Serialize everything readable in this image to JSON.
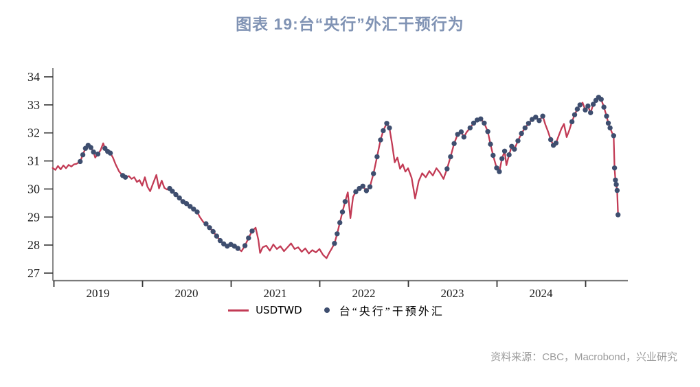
{
  "title": "图表 19:台“央行”外汇干预行为",
  "source": "资料来源：CBC，Macrobond，兴业研究",
  "legend": {
    "line_label": "USDTWD",
    "dot_label": "台“央行”干预外汇"
  },
  "colors": {
    "title": "#8093B4",
    "line": "#C23B55",
    "dot": "#3E4E6F",
    "axis": "#7A7A7A",
    "tick": "#333333",
    "source_text": "#9B9B9B"
  },
  "chart_data": {
    "type": "line",
    "title": "图表 19:台“央行”外汇干预行为",
    "xlabel": "",
    "ylabel": "",
    "x_unit": "decimal_year",
    "grid": false,
    "legend_position": "bottom-center",
    "xlim": [
      2018.99,
      2025.5
    ],
    "ylim": [
      26.6,
      34.35
    ],
    "y_ticks": [
      27,
      28,
      29,
      30,
      31,
      32,
      33,
      34
    ],
    "x_year_ticks": [
      2019,
      2020,
      2021,
      2022,
      2023,
      2024,
      2025
    ],
    "x_year_labels": [
      "2019",
      "2020",
      "2021",
      "2022",
      "2023",
      "2024"
    ],
    "series_line_name": "USDTWD",
    "series_dots_name": "台“央行”干预外汇",
    "points_format": "[decimal_year, usdtwd_rate, intervention_flag]",
    "points": [
      [
        2018.99,
        30.75,
        0
      ],
      [
        2019.02,
        30.68,
        0
      ],
      [
        2019.05,
        30.82,
        0
      ],
      [
        2019.08,
        30.7,
        0
      ],
      [
        2019.11,
        30.84,
        0
      ],
      [
        2019.14,
        30.74,
        0
      ],
      [
        2019.17,
        30.86,
        0
      ],
      [
        2019.2,
        30.8,
        0
      ],
      [
        2019.23,
        30.88,
        0
      ],
      [
        2019.26,
        30.9,
        0
      ],
      [
        2019.3,
        30.98,
        1
      ],
      [
        2019.33,
        31.22,
        1
      ],
      [
        2019.36,
        31.45,
        1
      ],
      [
        2019.39,
        31.56,
        1
      ],
      [
        2019.42,
        31.48,
        1
      ],
      [
        2019.45,
        31.32,
        1
      ],
      [
        2019.47,
        31.12,
        0
      ],
      [
        2019.5,
        31.25,
        1
      ],
      [
        2019.53,
        31.38,
        0
      ],
      [
        2019.56,
        31.63,
        0
      ],
      [
        2019.58,
        31.45,
        1
      ],
      [
        2019.61,
        31.34,
        1
      ],
      [
        2019.64,
        31.28,
        1
      ],
      [
        2019.67,
        31.12,
        0
      ],
      [
        2019.7,
        30.88,
        0
      ],
      [
        2019.74,
        30.62,
        0
      ],
      [
        2019.78,
        30.48,
        1
      ],
      [
        2019.81,
        30.42,
        1
      ],
      [
        2019.85,
        30.46,
        0
      ],
      [
        2019.88,
        30.36,
        0
      ],
      [
        2019.91,
        30.42,
        0
      ],
      [
        2019.94,
        30.25,
        0
      ],
      [
        2019.97,
        30.32,
        0
      ],
      [
        2020.0,
        30.12,
        0
      ],
      [
        2020.03,
        30.42,
        0
      ],
      [
        2020.06,
        30.08,
        0
      ],
      [
        2020.09,
        29.92,
        0
      ],
      [
        2020.12,
        30.18,
        0
      ],
      [
        2020.16,
        30.5,
        0
      ],
      [
        2020.19,
        30.02,
        0
      ],
      [
        2020.22,
        30.3,
        0
      ],
      [
        2020.25,
        30.04,
        0
      ],
      [
        2020.28,
        29.98,
        0
      ],
      [
        2020.31,
        30.02,
        1
      ],
      [
        2020.34,
        29.92,
        1
      ],
      [
        2020.38,
        29.8,
        1
      ],
      [
        2020.42,
        29.68,
        1
      ],
      [
        2020.46,
        29.55,
        1
      ],
      [
        2020.5,
        29.48,
        1
      ],
      [
        2020.54,
        29.38,
        1
      ],
      [
        2020.58,
        29.28,
        1
      ],
      [
        2020.62,
        29.18,
        1
      ],
      [
        2020.65,
        29.0,
        0
      ],
      [
        2020.69,
        28.82,
        0
      ],
      [
        2020.72,
        28.76,
        1
      ],
      [
        2020.76,
        28.62,
        1
      ],
      [
        2020.8,
        28.48,
        1
      ],
      [
        2020.84,
        28.32,
        1
      ],
      [
        2020.88,
        28.16,
        1
      ],
      [
        2020.92,
        28.04,
        1
      ],
      [
        2020.96,
        27.96,
        1
      ],
      [
        2021.0,
        28.02,
        1
      ],
      [
        2021.04,
        27.96,
        1
      ],
      [
        2021.08,
        27.88,
        1
      ],
      [
        2021.12,
        27.78,
        0
      ],
      [
        2021.16,
        27.98,
        1
      ],
      [
        2021.2,
        28.25,
        1
      ],
      [
        2021.24,
        28.5,
        1
      ],
      [
        2021.28,
        28.62,
        0
      ],
      [
        2021.31,
        28.2,
        0
      ],
      [
        2021.33,
        27.72,
        0
      ],
      [
        2021.36,
        27.92,
        0
      ],
      [
        2021.4,
        27.98,
        0
      ],
      [
        2021.44,
        27.8,
        0
      ],
      [
        2021.48,
        28.02,
        0
      ],
      [
        2021.52,
        27.86,
        0
      ],
      [
        2021.56,
        27.96,
        0
      ],
      [
        2021.6,
        27.78,
        0
      ],
      [
        2021.64,
        27.92,
        0
      ],
      [
        2021.68,
        28.06,
        0
      ],
      [
        2021.72,
        27.86,
        0
      ],
      [
        2021.76,
        27.92,
        0
      ],
      [
        2021.8,
        27.76,
        0
      ],
      [
        2021.84,
        27.88,
        0
      ],
      [
        2021.88,
        27.7,
        0
      ],
      [
        2021.92,
        27.82,
        0
      ],
      [
        2021.96,
        27.74,
        0
      ],
      [
        2022.0,
        27.86,
        0
      ],
      [
        2022.04,
        27.65,
        0
      ],
      [
        2022.08,
        27.53,
        0
      ],
      [
        2022.11,
        27.72,
        0
      ],
      [
        2022.14,
        27.88,
        0
      ],
      [
        2022.17,
        28.06,
        1
      ],
      [
        2022.2,
        28.4,
        1
      ],
      [
        2022.23,
        28.8,
        1
      ],
      [
        2022.26,
        29.18,
        1
      ],
      [
        2022.29,
        29.55,
        1
      ],
      [
        2022.32,
        29.88,
        0
      ],
      [
        2022.35,
        28.96,
        0
      ],
      [
        2022.38,
        29.72,
        0
      ],
      [
        2022.41,
        29.9,
        1
      ],
      [
        2022.45,
        30.02,
        1
      ],
      [
        2022.49,
        30.1,
        1
      ],
      [
        2022.53,
        29.94,
        1
      ],
      [
        2022.57,
        30.08,
        1
      ],
      [
        2022.61,
        30.55,
        1
      ],
      [
        2022.65,
        31.15,
        1
      ],
      [
        2022.69,
        31.75,
        1
      ],
      [
        2022.72,
        32.08,
        1
      ],
      [
        2022.76,
        32.34,
        1
      ],
      [
        2022.79,
        32.18,
        1
      ],
      [
        2022.82,
        31.6,
        0
      ],
      [
        2022.85,
        30.95,
        0
      ],
      [
        2022.88,
        31.12,
        0
      ],
      [
        2022.91,
        30.72,
        0
      ],
      [
        2022.94,
        30.88,
        0
      ],
      [
        2022.97,
        30.62,
        0
      ],
      [
        2023.0,
        30.74,
        0
      ],
      [
        2023.04,
        30.4,
        0
      ],
      [
        2023.08,
        29.66,
        0
      ],
      [
        2023.12,
        30.28,
        0
      ],
      [
        2023.16,
        30.56,
        0
      ],
      [
        2023.2,
        30.42,
        0
      ],
      [
        2023.24,
        30.64,
        0
      ],
      [
        2023.28,
        30.48,
        0
      ],
      [
        2023.32,
        30.74,
        0
      ],
      [
        2023.36,
        30.58,
        0
      ],
      [
        2023.4,
        30.36,
        0
      ],
      [
        2023.44,
        30.72,
        1
      ],
      [
        2023.48,
        31.15,
        1
      ],
      [
        2023.52,
        31.62,
        1
      ],
      [
        2023.56,
        31.95,
        1
      ],
      [
        2023.6,
        32.04,
        1
      ],
      [
        2023.63,
        31.85,
        1
      ],
      [
        2023.66,
        32.02,
        0
      ],
      [
        2023.7,
        32.18,
        1
      ],
      [
        2023.74,
        32.35,
        1
      ],
      [
        2023.78,
        32.46,
        1
      ],
      [
        2023.82,
        32.5,
        1
      ],
      [
        2023.86,
        32.35,
        1
      ],
      [
        2023.9,
        32.05,
        1
      ],
      [
        2023.93,
        31.6,
        1
      ],
      [
        2023.96,
        31.2,
        1
      ],
      [
        2024.0,
        30.75,
        1
      ],
      [
        2024.03,
        30.62,
        1
      ],
      [
        2024.06,
        31.08,
        1
      ],
      [
        2024.09,
        31.35,
        1
      ],
      [
        2024.11,
        30.85,
        0
      ],
      [
        2024.14,
        31.22,
        1
      ],
      [
        2024.17,
        31.52,
        1
      ],
      [
        2024.2,
        31.42,
        1
      ],
      [
        2024.24,
        31.72,
        1
      ],
      [
        2024.28,
        31.98,
        1
      ],
      [
        2024.32,
        32.18,
        1
      ],
      [
        2024.36,
        32.34,
        1
      ],
      [
        2024.4,
        32.48,
        1
      ],
      [
        2024.44,
        32.56,
        1
      ],
      [
        2024.48,
        32.44,
        1
      ],
      [
        2024.52,
        32.6,
        1
      ],
      [
        2024.55,
        32.3,
        0
      ],
      [
        2024.58,
        32.05,
        0
      ],
      [
        2024.61,
        31.76,
        1
      ],
      [
        2024.64,
        31.56,
        1
      ],
      [
        2024.67,
        31.64,
        1
      ],
      [
        2024.7,
        31.9,
        0
      ],
      [
        2024.73,
        32.15,
        0
      ],
      [
        2024.76,
        32.32,
        0
      ],
      [
        2024.79,
        31.85,
        0
      ],
      [
        2024.82,
        32.1,
        0
      ],
      [
        2024.85,
        32.4,
        1
      ],
      [
        2024.88,
        32.65,
        1
      ],
      [
        2024.91,
        32.85,
        1
      ],
      [
        2024.94,
        33.0,
        1
      ],
      [
        2024.97,
        33.08,
        0
      ],
      [
        2025.0,
        32.82,
        1
      ],
      [
        2025.03,
        32.96,
        1
      ],
      [
        2025.06,
        32.72,
        1
      ],
      [
        2025.09,
        33.02,
        1
      ],
      [
        2025.12,
        33.16,
        1
      ],
      [
        2025.15,
        33.27,
        1
      ],
      [
        2025.18,
        33.2,
        1
      ],
      [
        2025.21,
        32.92,
        1
      ],
      [
        2025.24,
        32.6,
        1
      ],
      [
        2025.26,
        32.35,
        1
      ],
      [
        2025.28,
        32.18,
        1
      ],
      [
        2025.3,
        32.02,
        0
      ],
      [
        2025.32,
        31.9,
        1
      ],
      [
        2025.33,
        30.75,
        1
      ],
      [
        2025.34,
        30.32,
        1
      ],
      [
        2025.35,
        30.16,
        1
      ],
      [
        2025.36,
        29.95,
        1
      ],
      [
        2025.37,
        29.08,
        1
      ]
    ]
  }
}
